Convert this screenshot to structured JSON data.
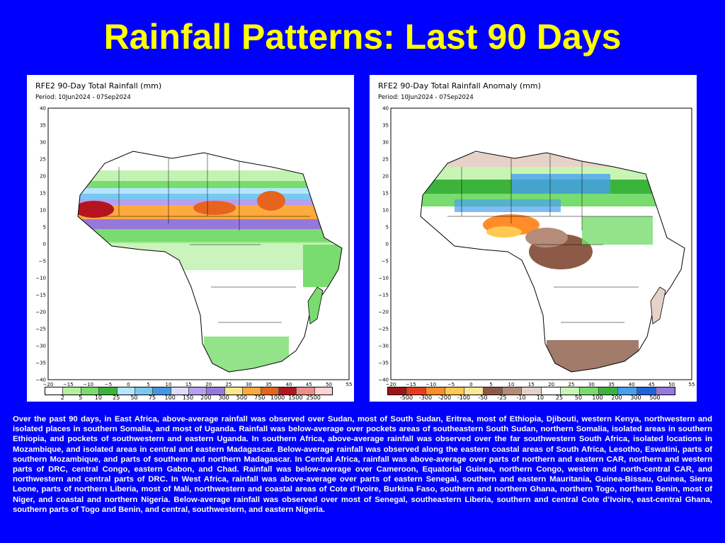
{
  "title": "Rainfall Patterns: Last 90 Days",
  "maps": [
    {
      "title": "RFE2 90-Day Total Rainfall (mm)",
      "period": "Period: 10Jun2024 - 07Sep2024",
      "legend_labels": [
        "2",
        "5",
        "10",
        "25",
        "50",
        "75",
        "100",
        "150",
        "200",
        "300",
        "500",
        "750",
        "1000",
        "1500",
        "2500"
      ],
      "legend_colors": [
        "#ffffff",
        "#b4f0a0",
        "#78dc6e",
        "#3cb43c",
        "#b4e6ff",
        "#78c8f0",
        "#4696e6",
        "#dcdcff",
        "#b4a0f0",
        "#9678dc",
        "#ffe68c",
        "#ffaa3c",
        "#e6641e",
        "#b4141e",
        "#f08c8c",
        "#ffd2d2"
      ]
    },
    {
      "title": "RFE2 90-Day Total Rainfall Anomaly (mm)",
      "period": "Period: 10Jun2024 - 07Sep2024",
      "legend_labels": [
        "-500",
        "-300",
        "-200",
        "-100",
        "-50",
        "-25",
        "-10",
        "10",
        "25",
        "50",
        "100",
        "200",
        "300",
        "500"
      ],
      "legend_colors": [
        "#a01414",
        "#e63c1e",
        "#ff8c28",
        "#ffc850",
        "#ffe69b",
        "#8c5a46",
        "#b48c78",
        "#e6d2c8",
        "#ffffff",
        "#c8f5b4",
        "#78dc6e",
        "#3cb43c",
        "#46a0f0",
        "#1e64dc",
        "#9678dc"
      ]
    }
  ],
  "lat_labels": [
    "40",
    "35",
    "30",
    "25",
    "20",
    "15",
    "10",
    "5",
    "0",
    "−5",
    "−10",
    "−15",
    "−20",
    "−25",
    "−30",
    "−35",
    "−40"
  ],
  "lon_labels": [
    "−20",
    "−15",
    "−10",
    "−5",
    "0",
    "5",
    "10",
    "15",
    "20",
    "25",
    "30",
    "35",
    "40",
    "45",
    "50",
    "55"
  ],
  "description": "Over the past 90 days, in East Africa, above-average rainfall was observed over Sudan, most of South Sudan, Eritrea, most of Ethiopia, Djibouti, western Kenya, northwestern and isolated places in southern Somalia, and most of Uganda. Rainfall was below-average over pockets areas of southeastern South Sudan, northern Somalia, isolated areas in southern Ethiopia, and pockets of southwestern and eastern Uganda. In southern Africa, above-average rainfall was observed over the far southwestern South Africa, isolated locations in Mozambique, and isolated areas in central and eastern Madagascar. Below-average rainfall was observed along the eastern coastal areas of South Africa, Lesotho, Eswatini, parts of southern Mozambique, and parts of southern and northern Madagascar. In Central Africa, rainfall was above-average over parts of northern and eastern CAR, northern and western parts of DRC, central Congo, eastern Gabon, and Chad. Rainfall was below-average over Cameroon, Equatorial Guinea, northern Congo, western and north-central CAR, and northwestern and central parts of DRC. In West Africa, rainfall was above-average over parts of eastern Senegal, southern and eastern Mauritania, Guinea-Bissau, Guinea, Sierra Leone, parts of northern Liberia, most of Mali, northwestern and coastal areas of Cote d’Ivoire, Burkina Faso, southern and northern Ghana, northern Togo, northern Benin, most of Niger, and coastal and northern Nigeria. Below-average rainfall was observed over most of Senegal, southeastern Liberia, southern and central Cote d’Ivoire, east-central Ghana, southern parts of Togo and Benin, and central, southwestern, and eastern Nigeria."
}
